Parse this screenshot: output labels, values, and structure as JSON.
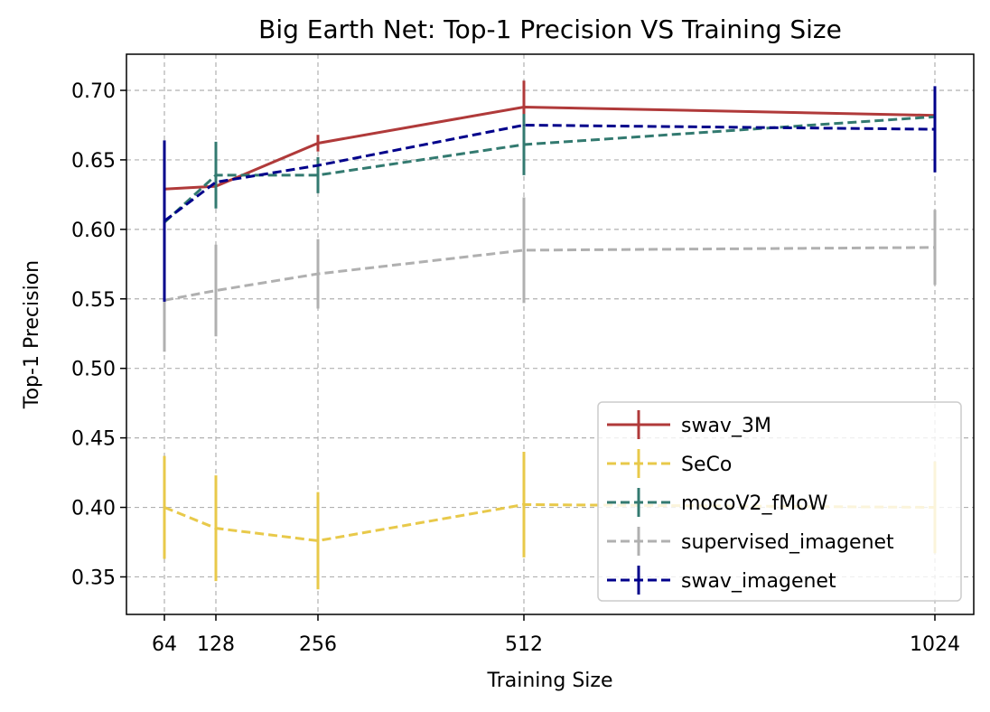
{
  "chart_data": {
    "type": "line",
    "title": "Big Earth Net: Top-1 Precision VS Training Size",
    "xlabel": "Training Size",
    "ylabel": "Top-1 Precision",
    "x": [
      64,
      128,
      256,
      512,
      1024
    ],
    "x_tick_labels": [
      "64",
      "128",
      "256",
      "512",
      "1024"
    ],
    "y_ticks": [
      0.35,
      0.4,
      0.45,
      0.5,
      0.55,
      0.6,
      0.65,
      0.7
    ],
    "y_tick_labels": [
      "0.35",
      "0.40",
      "0.45",
      "0.50",
      "0.55",
      "0.60",
      "0.65",
      "0.70"
    ],
    "ylim": [
      0.323,
      0.726
    ],
    "grid": true,
    "legend_position": "lower right",
    "series": [
      {
        "name": "swav_3M",
        "color": "#b03a3a",
        "dash": "solid",
        "values": [
          0.629,
          0.631,
          0.662,
          0.688,
          0.682
        ],
        "errors": [
          0.0,
          0.009,
          0.006,
          0.019,
          0.0
        ]
      },
      {
        "name": "SeCo",
        "color": "#e8c94a",
        "dash": "dashed",
        "values": [
          0.4,
          0.385,
          0.376,
          0.402,
          0.4
        ],
        "errors": [
          0.037,
          0.038,
          0.035,
          0.038,
          0.033
        ]
      },
      {
        "name": "mocoV2_fMoW",
        "color": "#337a70",
        "dash": "dashed",
        "values": [
          0.605,
          0.639,
          0.639,
          0.661,
          0.681
        ],
        "errors": [
          0.0,
          0.024,
          0.013,
          0.022,
          0.0
        ]
      },
      {
        "name": "supervised_imagenet",
        "color": "#b0b0b0",
        "dash": "dashed",
        "values": [
          0.549,
          0.556,
          0.568,
          0.585,
          0.587
        ],
        "errors": [
          0.037,
          0.033,
          0.025,
          0.038,
          0.027
        ]
      },
      {
        "name": "swav_imagenet",
        "color": "#00008b",
        "dash": "dashed",
        "values": [
          0.606,
          0.634,
          0.646,
          0.675,
          0.672
        ],
        "errors": [
          0.058,
          0.0,
          0.0,
          0.0,
          0.031
        ]
      }
    ]
  }
}
